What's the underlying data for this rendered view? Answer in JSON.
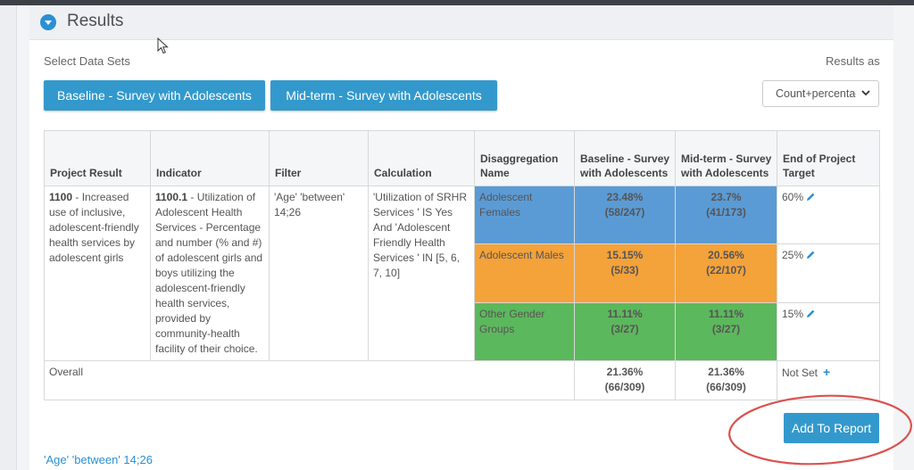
{
  "panel": {
    "title": "Results"
  },
  "labels": {
    "select_data_sets": "Select Data Sets",
    "results_as": "Results as"
  },
  "dataset_buttons": [
    "Baseline - Survey with Adolescents",
    "Mid-term - Survey with Adolescents"
  ],
  "results_select": {
    "value": "Count+percentage"
  },
  "table": {
    "headers": [
      "Project Result",
      "Indicator",
      "Filter",
      "Calculation",
      "Disaggregation Name",
      "Baseline - Survey with Adolescents",
      "Mid-term - Survey with Adolescents",
      "End of Project Target"
    ],
    "project_result": {
      "code": "1100",
      "text": " - Increased use of inclusive, adolescent-friendly health services by adolescent girls"
    },
    "indicator": {
      "code": "1100.1",
      "text": " - Utilization of Adolescent Health Services - Percentage and number (% and #) of adolescent girls and boys utilizing the adolescent-friendly health services, provided by community-health facility of their choice."
    },
    "filter": "'Age' 'between' 14;26",
    "calculation": "'Utilization of SRHR Services ' IS Yes And 'Adolescent Friendly Health Services ' IN [5, 6, 7, 10]",
    "rows": [
      {
        "name": "Adolescent Females",
        "baseline_pct": "23.48%",
        "baseline_count": "(58/247)",
        "midterm_pct": "23.7%",
        "midterm_count": "(41/173)",
        "target": "60%",
        "color": "#5b9bd5"
      },
      {
        "name": "Adolescent Males",
        "baseline_pct": "15.15%",
        "baseline_count": "(5/33)",
        "midterm_pct": "20.56%",
        "midterm_count": "(22/107)",
        "target": "25%",
        "color": "#f4a23a"
      },
      {
        "name": "Other Gender Groups",
        "baseline_pct": "11.11%",
        "baseline_count": "(3/27)",
        "midterm_pct": "11.11%",
        "midterm_count": "(3/27)",
        "target": "15%",
        "color": "#5cb85c"
      }
    ],
    "overall": {
      "label": "Overall",
      "baseline_pct": "21.36%",
      "baseline_count": "(66/309)",
      "midterm_pct": "21.36%",
      "midterm_count": "(66/309)",
      "target": "Not Set"
    }
  },
  "add_to_report": "Add To Report",
  "footer_filter": "'Age' 'between' 14;26",
  "colors": {
    "accent": "#3399cc",
    "highlight_circle": "#d9534f"
  },
  "icons": [
    "chevron-down-icon",
    "pencil-icon",
    "plus-icon",
    "mouse-cursor-icon"
  ]
}
